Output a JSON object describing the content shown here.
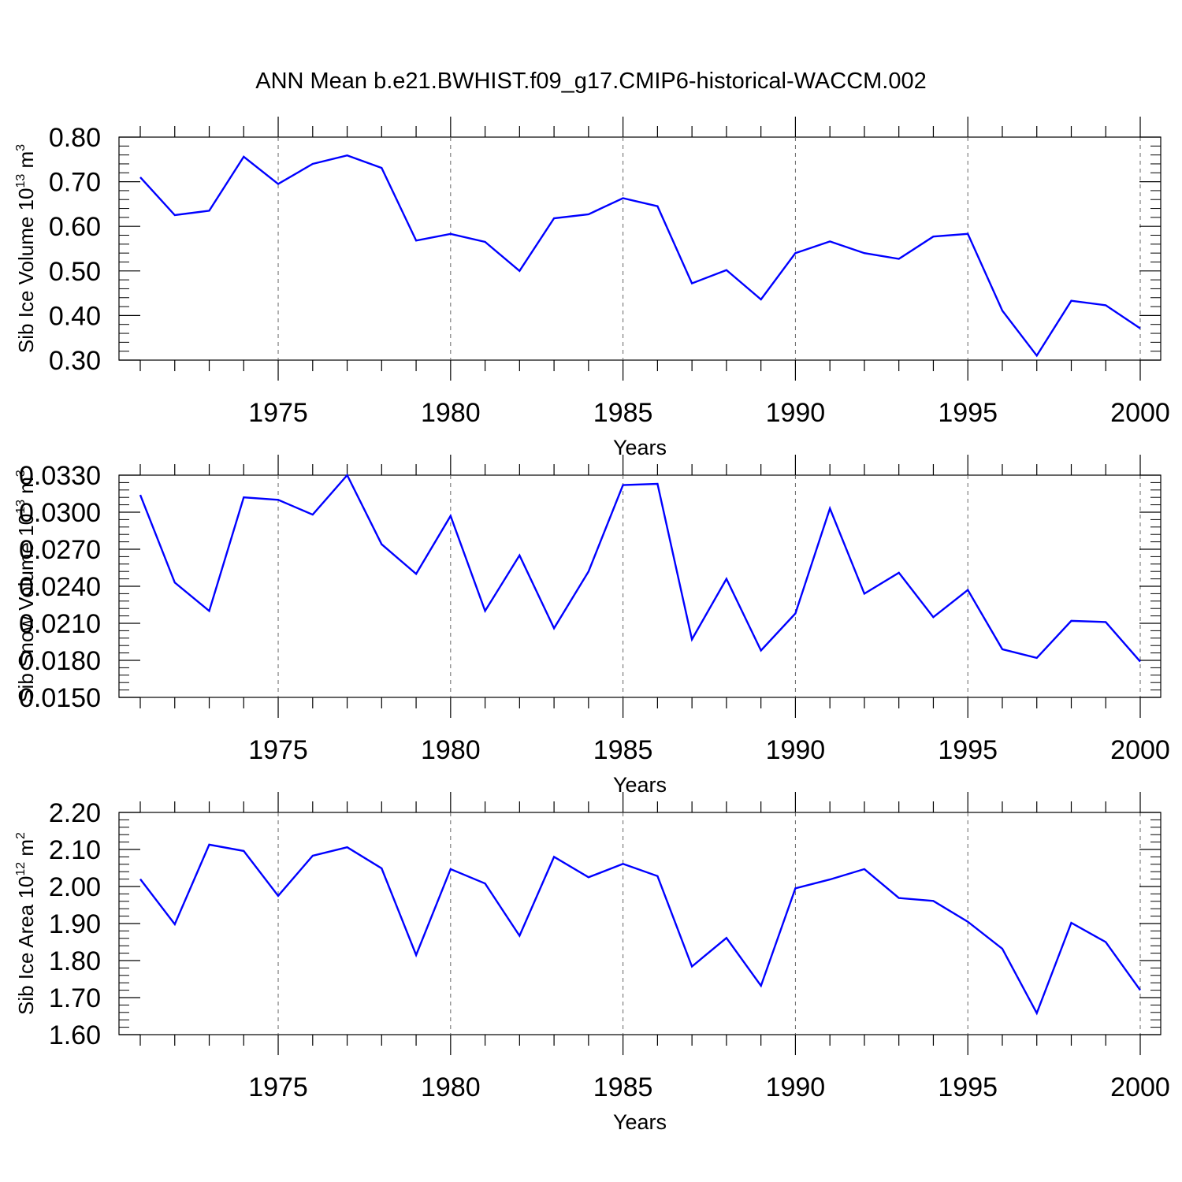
{
  "figure": {
    "title": "ANN Mean b.e21.BWHIST.f09_g17.CMIP6-historical-WACCM.002"
  },
  "chart_data": [
    {
      "type": "line",
      "ylabel": "Sib Ice Volume 10",
      "ylabel_exp": "13",
      "ylabel_unit": " m",
      "ylabel_unit_exp": "3",
      "xlabel": "Years",
      "xlim": [
        1971,
        2000
      ],
      "ylim": [
        0.3,
        0.8
      ],
      "yticks": [
        "0.30",
        "0.40",
        "0.50",
        "0.60",
        "0.70",
        "0.80"
      ],
      "xticks": [
        "1975",
        "1980",
        "1985",
        "1990",
        "1995",
        "2000"
      ],
      "line_color": "#0000ff",
      "x": [
        1971,
        1972,
        1973,
        1974,
        1975,
        1976,
        1977,
        1978,
        1979,
        1980,
        1981,
        1982,
        1983,
        1984,
        1985,
        1986,
        1987,
        1988,
        1989,
        1990,
        1991,
        1992,
        1993,
        1994,
        1995,
        1996,
        1997,
        1998,
        1999,
        2000
      ],
      "values": [
        0.71,
        0.625,
        0.635,
        0.756,
        0.695,
        0.74,
        0.759,
        0.731,
        0.568,
        0.583,
        0.565,
        0.5,
        0.618,
        0.627,
        0.663,
        0.645,
        0.472,
        0.502,
        0.436,
        0.54,
        0.566,
        0.54,
        0.527,
        0.577,
        0.583,
        0.411,
        0.31,
        0.433,
        0.423,
        0.371
      ]
    },
    {
      "type": "line",
      "ylabel": "Sib Snow Volume 10",
      "ylabel_exp": "13",
      "ylabel_unit": " m",
      "ylabel_unit_exp": "3",
      "xlabel": "Years",
      "xlim": [
        1971,
        2000
      ],
      "ylim": [
        0.015,
        0.033
      ],
      "yticks": [
        "0.0150",
        "0.0180",
        "0.0210",
        "0.0240",
        "0.0270",
        "0.0300",
        "0.0330"
      ],
      "xticks": [
        "1975",
        "1980",
        "1985",
        "1990",
        "1995",
        "2000"
      ],
      "line_color": "#0000ff",
      "x": [
        1971,
        1972,
        1973,
        1974,
        1975,
        1976,
        1977,
        1978,
        1979,
        1980,
        1981,
        1982,
        1983,
        1984,
        1985,
        1986,
        1987,
        1988,
        1989,
        1990,
        1991,
        1992,
        1993,
        1994,
        1995,
        1996,
        1997,
        1998,
        1999,
        2000
      ],
      "values": [
        0.0314,
        0.0243,
        0.022,
        0.0312,
        0.031,
        0.0298,
        0.033,
        0.0274,
        0.025,
        0.0297,
        0.022,
        0.0265,
        0.0206,
        0.0252,
        0.0322,
        0.0323,
        0.0197,
        0.0246,
        0.0188,
        0.0218,
        0.0303,
        0.0234,
        0.0251,
        0.0215,
        0.0237,
        0.0189,
        0.0182,
        0.0212,
        0.0211,
        0.0179
      ]
    },
    {
      "type": "line",
      "ylabel": "Sib Ice Area 10",
      "ylabel_exp": "12",
      "ylabel_unit": " m",
      "ylabel_unit_exp": "2",
      "xlabel": "Years",
      "xlim": [
        1971,
        2000
      ],
      "ylim": [
        1.6,
        2.2
      ],
      "yticks": [
        "1.60",
        "1.70",
        "1.80",
        "1.90",
        "2.00",
        "2.10",
        "2.20"
      ],
      "xticks": [
        "1975",
        "1980",
        "1985",
        "1990",
        "1995",
        "2000"
      ],
      "line_color": "#0000ff",
      "x": [
        1971,
        1972,
        1973,
        1974,
        1975,
        1976,
        1977,
        1978,
        1979,
        1980,
        1981,
        1982,
        1983,
        1984,
        1985,
        1986,
        1987,
        1988,
        1989,
        1990,
        1991,
        1992,
        1993,
        1994,
        1995,
        1996,
        1997,
        1998,
        1999,
        2000
      ],
      "values": [
        2.02,
        1.898,
        2.113,
        2.096,
        1.975,
        2.083,
        2.106,
        2.049,
        1.815,
        2.047,
        2.008,
        1.867,
        2.08,
        2.025,
        2.061,
        2.028,
        1.784,
        1.861,
        1.732,
        1.995,
        2.019,
        2.047,
        1.969,
        1.961,
        1.905,
        1.832,
        1.658,
        1.902,
        1.85,
        1.72
      ]
    }
  ]
}
